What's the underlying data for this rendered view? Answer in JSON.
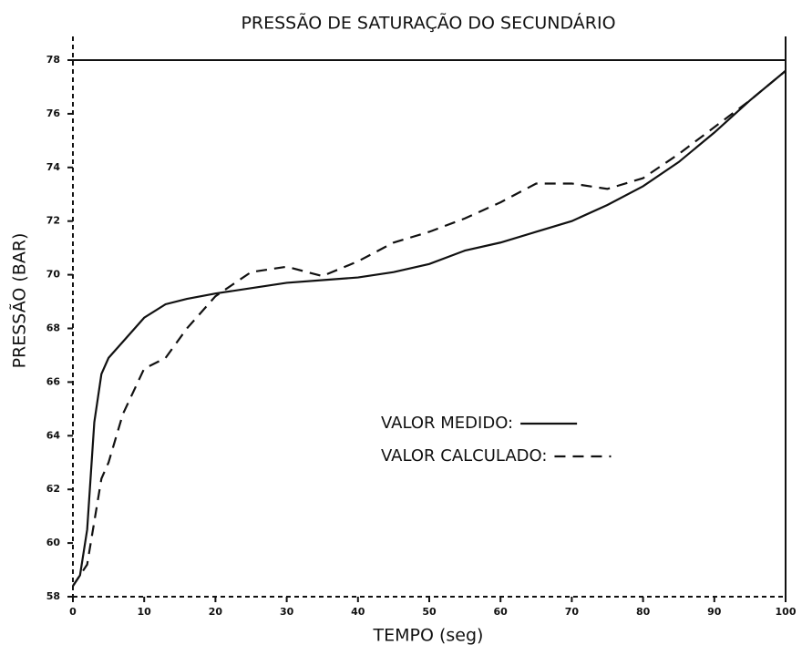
{
  "chart_data": {
    "type": "line",
    "title": "PRESSÃO DE SATURAÇÃO DO SECUNDÁRIO",
    "xlabel": "TEMPO (seg)",
    "ylabel": "PRESSÃO (BAR)",
    "x": [
      0,
      1,
      2,
      3,
      4,
      5,
      7,
      10,
      13,
      16,
      20,
      25,
      30,
      35,
      40,
      45,
      50,
      55,
      60,
      65,
      70,
      75,
      80,
      85,
      90,
      95,
      100
    ],
    "series": [
      {
        "name": "VALOR MEDIDO:",
        "color": "#111111",
        "dash": "solid",
        "values": [
          58.4,
          58.8,
          60.5,
          64.5,
          66.3,
          66.9,
          67.5,
          68.4,
          68.9,
          69.1,
          69.3,
          69.5,
          69.7,
          69.8,
          69.9,
          70.1,
          70.4,
          70.9,
          71.2,
          71.6,
          72.0,
          72.6,
          73.3,
          74.2,
          75.3,
          76.5,
          77.6
        ]
      },
      {
        "name": "VALOR CALCULADO:",
        "color": "#111111",
        "dash": "dashed",
        "values": [
          58.4,
          58.8,
          59.2,
          60.8,
          62.4,
          63.0,
          64.8,
          66.5,
          66.9,
          68.0,
          69.2,
          70.1,
          70.3,
          69.95,
          70.5,
          71.2,
          71.6,
          72.1,
          72.7,
          73.4,
          73.4,
          73.2,
          73.6,
          74.5,
          75.5,
          76.5,
          77.6
        ]
      }
    ],
    "xlim": [
      0,
      100
    ],
    "xticks": [
      0,
      10,
      20,
      30,
      40,
      50,
      60,
      70,
      80,
      90,
      100
    ],
    "ylim": [
      58,
      78
    ],
    "yticks": [
      58,
      60,
      62,
      64,
      66,
      68,
      70,
      72,
      74,
      76,
      78
    ],
    "grid": false
  }
}
